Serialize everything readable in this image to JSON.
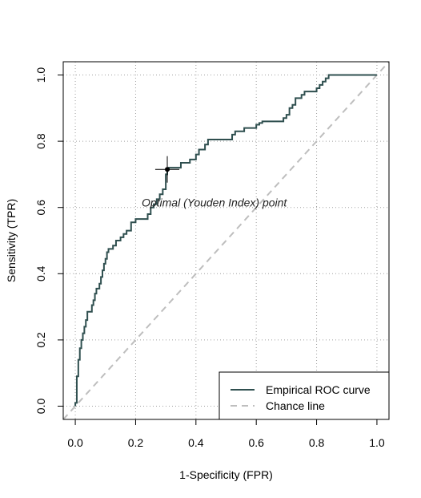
{
  "chart_data": {
    "type": "line",
    "xlabel": "1-Specificity (FPR)",
    "ylabel": "Sensitivity (TPR)",
    "xlim": [
      -0.04,
      1.04
    ],
    "ylim": [
      -0.04,
      1.04
    ],
    "x_ticks": [
      0.0,
      0.2,
      0.4,
      0.6,
      0.8,
      1.0
    ],
    "y_ticks": [
      0.0,
      0.2,
      0.4,
      0.6,
      0.8,
      1.0
    ],
    "x_tick_labels": [
      "0.0",
      "0.2",
      "0.4",
      "0.6",
      "0.8",
      "1.0"
    ],
    "y_tick_labels": [
      "0.0",
      "0.2",
      "0.4",
      "0.6",
      "0.8",
      "1.0"
    ],
    "grid": true,
    "legend_position": "bottom-right",
    "series": [
      {
        "name": "Empirical ROC curve",
        "color": "#2f4f4f",
        "style": "step",
        "x": [
          0.0,
          0.0,
          0.005,
          0.005,
          0.01,
          0.01,
          0.015,
          0.015,
          0.02,
          0.02,
          0.025,
          0.025,
          0.03,
          0.03,
          0.035,
          0.035,
          0.04,
          0.04,
          0.055,
          0.055,
          0.06,
          0.06,
          0.065,
          0.065,
          0.07,
          0.07,
          0.08,
          0.08,
          0.085,
          0.085,
          0.09,
          0.09,
          0.095,
          0.095,
          0.1,
          0.1,
          0.105,
          0.105,
          0.11,
          0.11,
          0.125,
          0.125,
          0.135,
          0.135,
          0.15,
          0.15,
          0.16,
          0.16,
          0.17,
          0.17,
          0.185,
          0.185,
          0.2,
          0.2,
          0.24,
          0.24,
          0.25,
          0.25,
          0.26,
          0.26,
          0.27,
          0.27,
          0.28,
          0.28,
          0.29,
          0.29,
          0.3,
          0.3,
          0.305,
          0.305,
          0.31,
          0.31,
          0.35,
          0.35,
          0.38,
          0.38,
          0.4,
          0.4,
          0.41,
          0.41,
          0.43,
          0.43,
          0.44,
          0.44,
          0.52,
          0.52,
          0.53,
          0.53,
          0.56,
          0.56,
          0.6,
          0.6,
          0.61,
          0.61,
          0.62,
          0.62,
          0.69,
          0.69,
          0.7,
          0.7,
          0.71,
          0.71,
          0.72,
          0.72,
          0.73,
          0.73,
          0.75,
          0.75,
          0.76,
          0.76,
          0.8,
          0.8,
          0.81,
          0.81,
          0.82,
          0.82,
          0.83,
          0.83,
          0.84,
          0.84,
          1.0
        ],
        "y": [
          0.0,
          0.01,
          0.01,
          0.09,
          0.09,
          0.14,
          0.14,
          0.175,
          0.175,
          0.2,
          0.2,
          0.22,
          0.22,
          0.24,
          0.24,
          0.26,
          0.26,
          0.285,
          0.285,
          0.305,
          0.305,
          0.32,
          0.32,
          0.34,
          0.34,
          0.355,
          0.355,
          0.37,
          0.37,
          0.39,
          0.39,
          0.41,
          0.41,
          0.43,
          0.43,
          0.445,
          0.445,
          0.465,
          0.465,
          0.475,
          0.475,
          0.485,
          0.485,
          0.5,
          0.5,
          0.51,
          0.51,
          0.52,
          0.52,
          0.53,
          0.53,
          0.555,
          0.555,
          0.565,
          0.565,
          0.58,
          0.58,
          0.6,
          0.6,
          0.61,
          0.61,
          0.625,
          0.625,
          0.64,
          0.64,
          0.655,
          0.655,
          0.7,
          0.7,
          0.715,
          0.715,
          0.72,
          0.72,
          0.735,
          0.735,
          0.745,
          0.745,
          0.76,
          0.76,
          0.775,
          0.775,
          0.79,
          0.79,
          0.805,
          0.805,
          0.82,
          0.82,
          0.83,
          0.83,
          0.84,
          0.84,
          0.85,
          0.85,
          0.855,
          0.855,
          0.86,
          0.86,
          0.87,
          0.87,
          0.88,
          0.88,
          0.9,
          0.9,
          0.91,
          0.91,
          0.93,
          0.93,
          0.94,
          0.94,
          0.95,
          0.95,
          0.96,
          0.96,
          0.97,
          0.97,
          0.98,
          0.98,
          0.99,
          0.99,
          1.0,
          1.0
        ]
      },
      {
        "name": "Chance line",
        "color": "#bebebe",
        "style": "dashed",
        "x": [
          -0.04,
          1.04
        ],
        "y": [
          -0.04,
          1.04
        ]
      }
    ],
    "optimal_point": {
      "x": 0.305,
      "y": 0.715,
      "label": "Optimal (Youden Index) point",
      "label_x": 0.22,
      "label_y": 0.615,
      "cross_half_x": 0.04,
      "cross_half_y": 0.04
    }
  }
}
